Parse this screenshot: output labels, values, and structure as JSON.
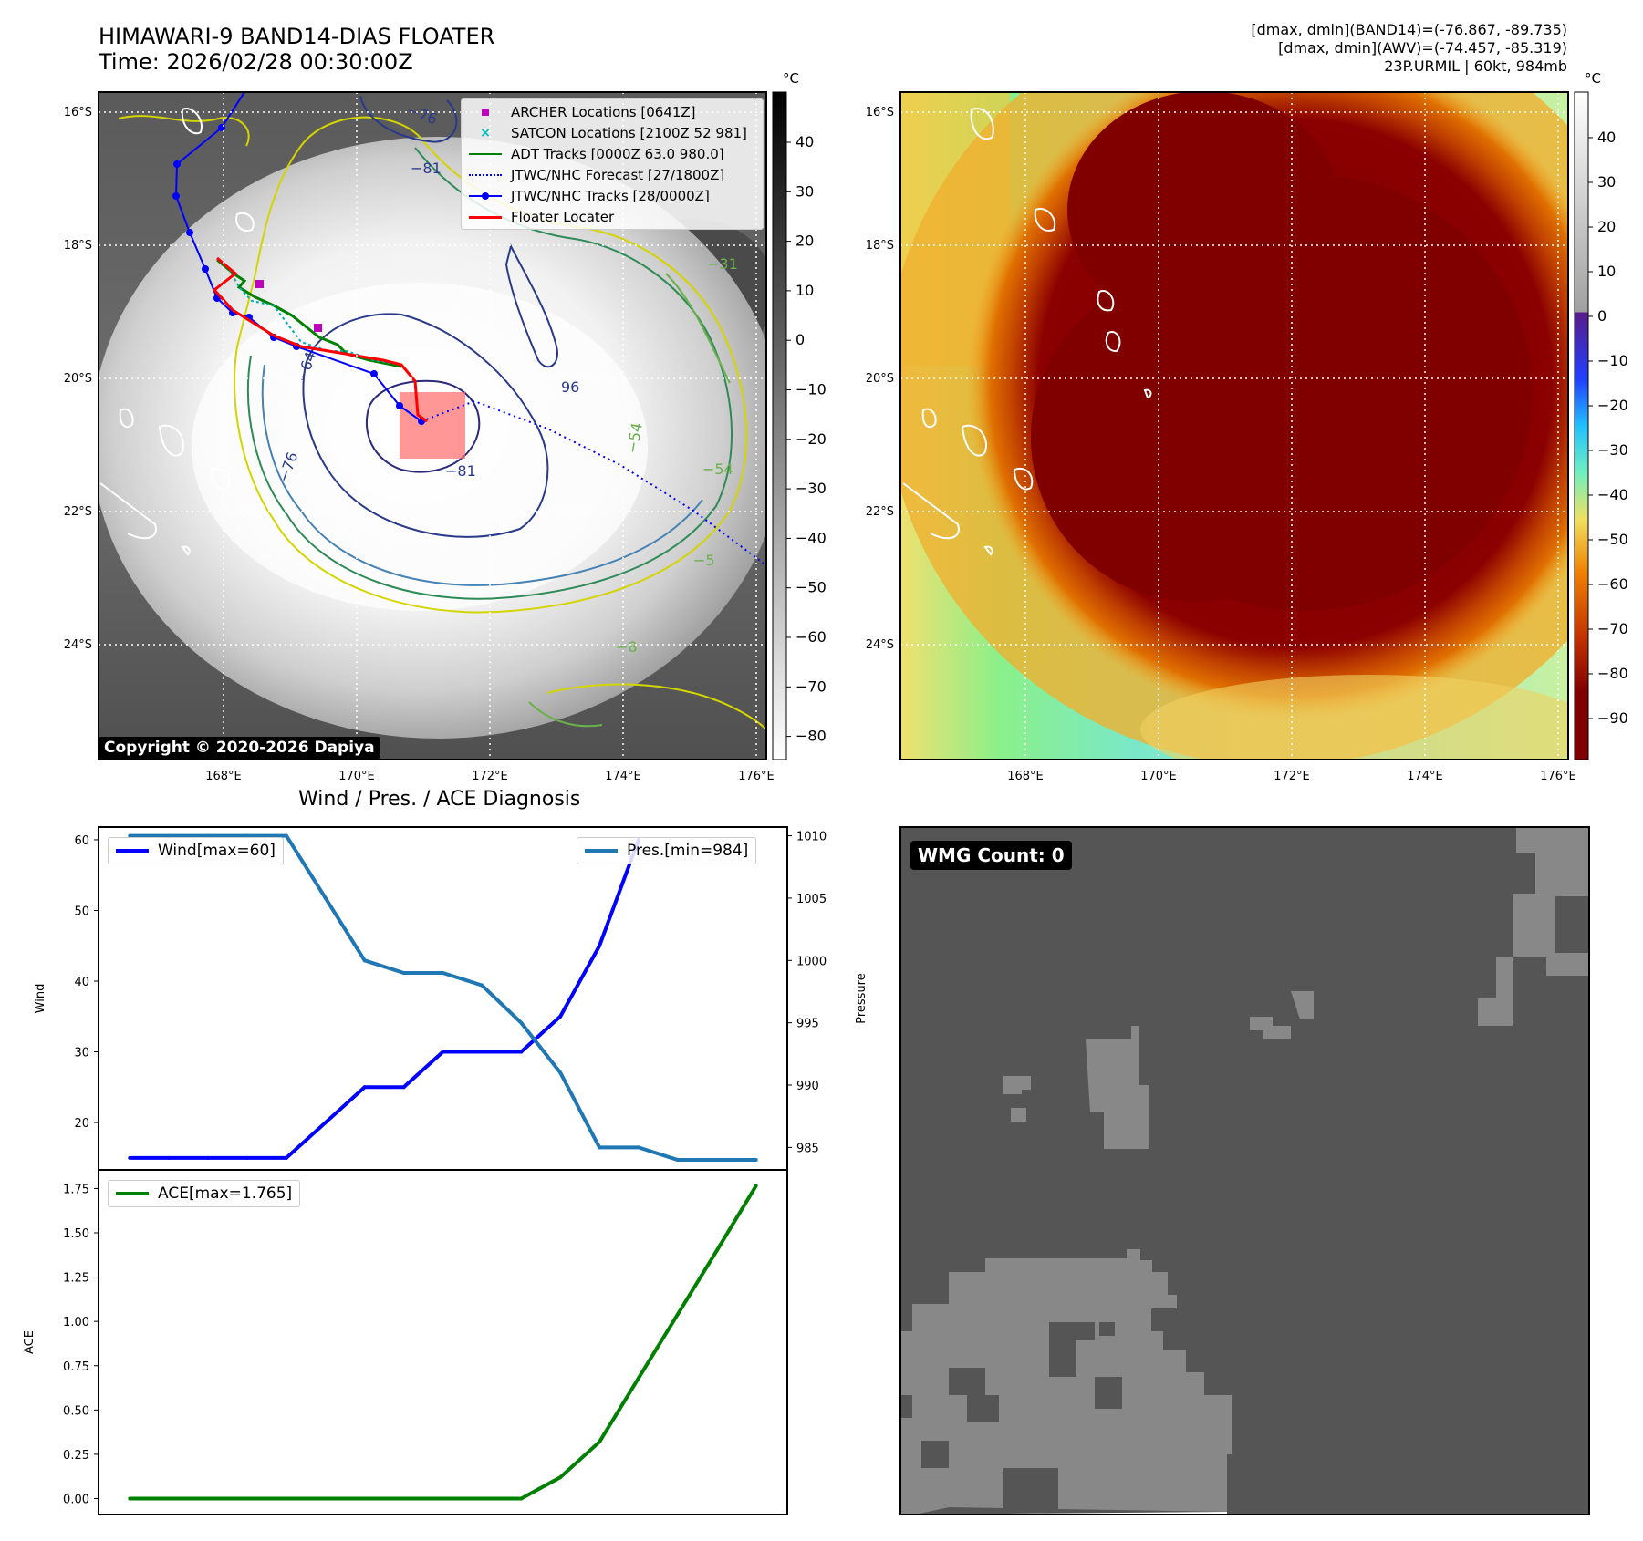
{
  "header": {
    "title": "HIMAWARI-9 BAND14-DIAS FLOATER",
    "time": "Time: 2026/02/28 00:30:00Z",
    "info_line1": "[dmax, dmin](BAND14)=(-76.867, -89.735)",
    "info_line2": "[dmax, dmin](AWV)=(-74.457, -85.319)",
    "info_line3": "23P.URMIL | 60kt, 984mb"
  },
  "map": {
    "lat_labels": [
      "16°S",
      "18°S",
      "20°S",
      "22°S",
      "24°S"
    ],
    "lon_labels": [
      "168°E",
      "170°E",
      "172°E",
      "174°E",
      "176°E"
    ],
    "copyright": "Copyright © 2020-2026 Dapiya",
    "colorbar_unit": "°C",
    "ir_colorbar_ticks": [
      "40",
      "30",
      "20",
      "10",
      "0",
      "−10",
      "−20",
      "−30",
      "−40",
      "−50",
      "−60",
      "−70",
      "−80"
    ],
    "dias_colorbar_ticks": [
      "40",
      "30",
      "20",
      "10",
      "0",
      "−10",
      "−20",
      "−30",
      "−40",
      "−50",
      "−60",
      "−70",
      "−80",
      "−90"
    ],
    "contour_labels": [
      "−76",
      "−81",
      "−64",
      "−76",
      "−81",
      "−31",
      "−54",
      "−54",
      "−5",
      "96",
      "−8"
    ],
    "legend": [
      {
        "label": "ARCHER Locations [0641Z]",
        "color": "#bf00bf"
      },
      {
        "label": "SATCON Locations [2100Z 52 981]",
        "color": "#00bfbf"
      },
      {
        "label": "ADT Tracks [0000Z 63.0 980.0]",
        "color": "#008000"
      },
      {
        "label": "JTWC/NHC Forecast [27/1800Z]",
        "color": "#0000ff"
      },
      {
        "label": "JTWC/NHC Tracks [28/0000Z]",
        "color": "#0000ff"
      },
      {
        "label": "Floater Locater",
        "color": "#ff0000"
      }
    ]
  },
  "diagnosis": {
    "title": "Wind / Pres. / ACE Diagnosis",
    "wind_label": "Wind",
    "pressure_label": "Pressure",
    "ace_label": "ACE",
    "legend_wind": "Wind[max=60]",
    "legend_pres": "Pres.[min=984]",
    "legend_ace": "ACE[max=1.765]",
    "wind_color": "#0000ff",
    "pres_color": "#1f77b4",
    "ace_color": "#008000"
  },
  "wmg": {
    "label": "WMG Count: 0"
  },
  "chart_data": [
    {
      "type": "line",
      "title": "Wind / Pres. / ACE Diagnosis",
      "x": [
        0,
        1,
        2,
        3,
        4,
        5,
        6,
        7,
        8,
        9,
        10,
        11,
        12,
        13,
        14,
        15,
        16
      ],
      "series": [
        {
          "name": "Wind[max=60]",
          "axis": "left",
          "values": [
            15,
            15,
            15,
            15,
            15,
            20,
            25,
            25,
            30,
            30,
            30,
            35,
            45,
            60,
            null,
            null,
            null
          ]
        },
        {
          "name": "Pres.[min=984]",
          "axis": "right",
          "values": [
            1010,
            1010,
            1010,
            1010,
            1010,
            1005,
            1000,
            999,
            999,
            998,
            995,
            991,
            985,
            985,
            984,
            984,
            984
          ]
        }
      ],
      "ylabel": "Wind",
      "y2label": "Pressure",
      "yticks": [
        20,
        30,
        40,
        50,
        60
      ],
      "ylim": [
        13.3,
        61.8
      ],
      "y2ticks": [
        985,
        990,
        995,
        1000,
        1005,
        1010
      ],
      "y2lim": [
        983.2,
        1010.7
      ]
    },
    {
      "type": "line",
      "x": [
        0,
        1,
        2,
        3,
        4,
        5,
        6,
        7,
        8,
        9,
        10,
        11,
        12,
        13,
        14,
        15,
        16
      ],
      "series": [
        {
          "name": "ACE[max=1.765]",
          "values": [
            0,
            0,
            0,
            0,
            0,
            0,
            0,
            0,
            0,
            0,
            0,
            0.12,
            0.32,
            0.68,
            1.04,
            1.4,
            1.765
          ]
        }
      ],
      "ylabel": "ACE",
      "yticks": [
        "0.00",
        "0.25",
        "0.50",
        "0.75",
        "1.00",
        "1.25",
        "1.50",
        "1.75"
      ],
      "ylim": [
        -0.09,
        1.855
      ]
    }
  ]
}
